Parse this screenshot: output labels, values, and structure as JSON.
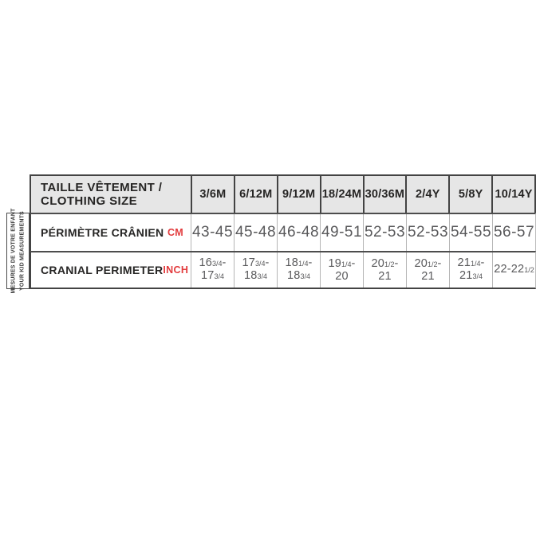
{
  "colors": {
    "header_bg": "#e6e6e6",
    "border_dark": "#434343",
    "border_light": "#b5b5b5",
    "text_dark": "#262524",
    "text_gray": "#59595b",
    "accent_red": "#e23b3d"
  },
  "side_label": {
    "line1": "MESURES DE VOTRE ENFANT",
    "line2": "YOUR KID MEASUREMENTS"
  },
  "table": {
    "corner": {
      "line1": "TAILLE VÊTEMENT /",
      "line2": "CLOTHING SIZE"
    },
    "columns": [
      "3/6M",
      "6/12M",
      "9/12M",
      "18/24M",
      "30/36M",
      "2/4Y",
      "5/8Y",
      "10/14Y"
    ],
    "rows": [
      {
        "label": "PÉRIMÈTRE CRÂNIEN",
        "unit": "CM",
        "type": "plain",
        "values": [
          "43-45",
          "45-48",
          "46-48",
          "49-51",
          "52-53",
          "52-53",
          "54-55",
          "56-57"
        ]
      },
      {
        "label": "CRANIAL PERIMETER",
        "unit": "INCH",
        "type": "fraction",
        "values": [
          "16^3/4-|17^3/4",
          "17^3/4-|18^3/4",
          "18^1/4-|18^3/4",
          "19^1/4-|20",
          "20^1/2-|21",
          "20^1/2-|21",
          "21^1/4-|21^3/4",
          "22-22^1/2"
        ]
      }
    ]
  },
  "chart_data": {
    "type": "table",
    "title": "TAILLE VÊTEMENT / CLOTHING SIZE",
    "row_group_label": "MESURES DE VOTRE ENFANT / YOUR KID MEASUREMENTS",
    "columns": [
      "3/6M",
      "6/12M",
      "9/12M",
      "18/24M",
      "30/36M",
      "2/4Y",
      "5/8Y",
      "10/14Y"
    ],
    "rows": [
      {
        "label": "PÉRIMÈTRE CRÂNIEN",
        "unit": "CM",
        "values": [
          "43-45",
          "45-48",
          "46-48",
          "49-51",
          "52-53",
          "52-53",
          "54-55",
          "56-57"
        ]
      },
      {
        "label": "CRANIAL PERIMETER",
        "unit": "INCH",
        "values": [
          "16 3/4-17 3/4",
          "17 3/4-18 3/4",
          "18 1/4-18 3/4",
          "19 1/4-20",
          "20 1/2-21",
          "20 1/2-21",
          "21 1/4-21 3/4",
          "22-22 1/2"
        ]
      }
    ]
  }
}
